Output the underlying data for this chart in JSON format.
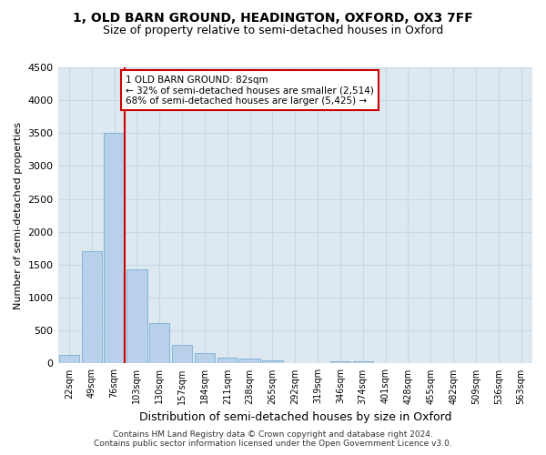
{
  "title_line1": "1, OLD BARN GROUND, HEADINGTON, OXFORD, OX3 7FF",
  "title_line2": "Size of property relative to semi-detached houses in Oxford",
  "xlabel": "Distribution of semi-detached houses by size in Oxford",
  "ylabel": "Number of semi-detached properties",
  "footnote": "Contains HM Land Registry data © Crown copyright and database right 2024.\nContains public sector information licensed under the Open Government Licence v3.0.",
  "categories": [
    "22sqm",
    "49sqm",
    "76sqm",
    "103sqm",
    "130sqm",
    "157sqm",
    "184sqm",
    "211sqm",
    "238sqm",
    "265sqm",
    "292sqm",
    "319sqm",
    "346sqm",
    "374sqm",
    "401sqm",
    "428sqm",
    "455sqm",
    "482sqm",
    "509sqm",
    "536sqm",
    "563sqm"
  ],
  "values": [
    130,
    1700,
    3500,
    1430,
    620,
    280,
    160,
    95,
    70,
    50,
    0,
    0,
    40,
    30,
    0,
    0,
    0,
    0,
    0,
    0,
    0
  ],
  "bar_color": "#b8d0ea",
  "bar_edge_color": "#7aafd4",
  "vline_color": "#cc0000",
  "vline_x_index": 2,
  "annotation_text_line1": "1 OLD BARN GROUND: 82sqm",
  "annotation_text_line2": "← 32% of semi-detached houses are smaller (2,514)",
  "annotation_text_line3": "68% of semi-detached houses are larger (5,425) →",
  "annotation_box_color": "#ffffff",
  "annotation_box_edge": "#cc0000",
  "ylim": [
    0,
    4500
  ],
  "yticks": [
    0,
    500,
    1000,
    1500,
    2000,
    2500,
    3000,
    3500,
    4000,
    4500
  ],
  "grid_color": "#c8d8ea",
  "bg_color": "#dde8f0",
  "title1_fontsize": 10,
  "title2_fontsize": 9,
  "ylabel_fontsize": 8,
  "xlabel_fontsize": 9,
  "tick_fontsize": 7,
  "footnote_fontsize": 6.5
}
